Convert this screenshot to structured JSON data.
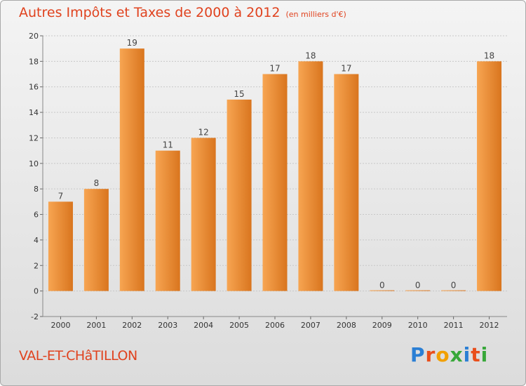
{
  "header": {
    "title": "Autres Impôts et Taxes de 2000 à 2012",
    "subtitle": "(en milliers d'€)"
  },
  "footer": {
    "place": "VAL-ET-CHâTILLON",
    "logo_letters": [
      {
        "ch": "P",
        "color": "#2b7fd4"
      },
      {
        "ch": "r",
        "color": "#e94e1b"
      },
      {
        "ch": "o",
        "color": "#f2a000"
      },
      {
        "ch": "x",
        "color": "#38a83a"
      },
      {
        "ch": "i",
        "color": "#2b7fd4"
      },
      {
        "ch": "t",
        "color": "#e94e1b"
      },
      {
        "ch": "i",
        "color": "#38a83a"
      }
    ]
  },
  "colors": {
    "bar_light": "#f7a552",
    "bar_dark": "#d9751e",
    "accent": "#e0421e"
  },
  "chart_data": {
    "type": "bar",
    "categories": [
      "2000",
      "2001",
      "2002",
      "2003",
      "2004",
      "2005",
      "2006",
      "2007",
      "2008",
      "2009",
      "2010",
      "2011",
      "2012"
    ],
    "values": [
      7,
      8,
      19,
      11,
      12,
      15,
      17,
      18,
      17,
      0,
      0,
      0,
      18
    ],
    "data_labels": [
      "7",
      "8",
      "19",
      "11",
      "12",
      "15",
      "17",
      "18",
      "17",
      "0",
      "0",
      "0",
      "18"
    ],
    "title": "Autres Impôts et Taxes de 2000 à 2012",
    "subtitle": "(en milliers d'€)",
    "ylim": [
      -2,
      20
    ],
    "yticks": [
      -2,
      0,
      2,
      4,
      6,
      8,
      10,
      12,
      14,
      16,
      18,
      20
    ],
    "grid": true,
    "xlabel": "",
    "ylabel": ""
  }
}
